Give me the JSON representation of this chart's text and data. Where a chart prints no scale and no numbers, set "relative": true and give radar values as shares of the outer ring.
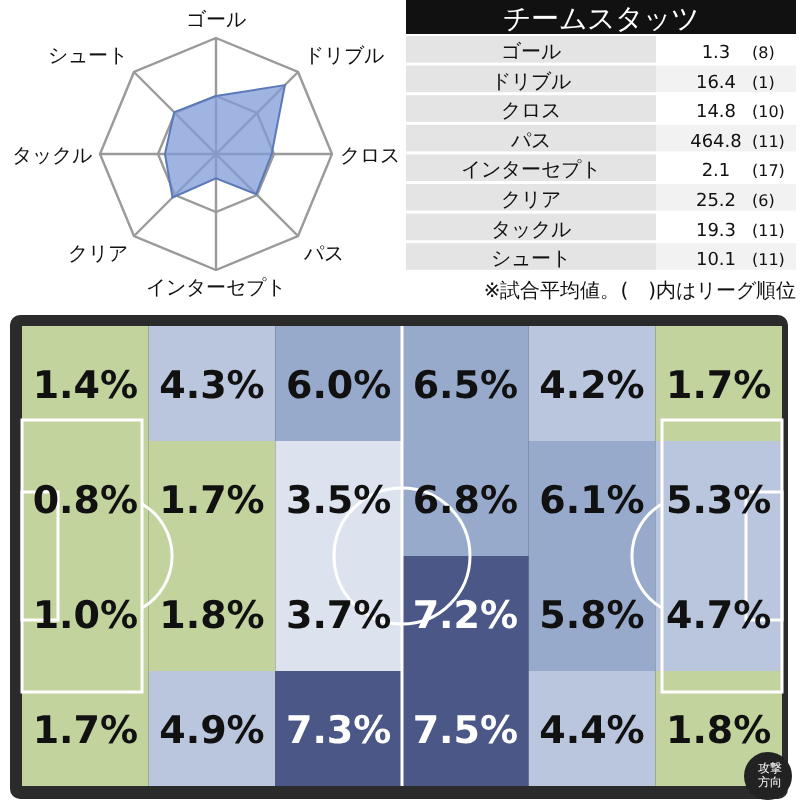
{
  "chart_data": [
    {
      "type": "radar",
      "relative": true,
      "categories": [
        "ゴール",
        "ドリブル",
        "クロス",
        "パス",
        "インターセプト",
        "クリア",
        "タックル",
        "シュート"
      ],
      "series": [
        {
          "color": "#7f9bd6",
          "values": [
            0.5,
            0.84,
            0.48,
            0.49,
            0.21,
            0.53,
            0.44,
            0.51
          ]
        }
      ]
    },
    {
      "type": "other",
      "title": "チームスタッツ",
      "categories": [
        "ゴール",
        "ドリブル",
        "クロス",
        "パス",
        "インターセプト",
        "クリア",
        "タックル",
        "シュート"
      ],
      "series": [
        {
          "values": [
            1.3,
            16.4,
            14.8,
            464.8,
            2.1,
            25.2,
            19.3,
            10.1
          ]
        },
        {
          "values": [
            8,
            1,
            10,
            11,
            17,
            6,
            11,
            11
          ],
          "value_labels": [
            "(8)",
            "(1)",
            "(10)",
            "(11)",
            "(17)",
            "(6)",
            "(11)",
            "(11)"
          ]
        }
      ],
      "data_labels": true,
      "annotations": [
        "※試合平均値。(　)内はリーグ順位"
      ]
    },
    {
      "type": "heatmap",
      "categories": [
        null,
        null,
        null,
        null,
        null,
        null
      ],
      "y_categories": [
        null,
        null,
        null,
        null
      ],
      "cells": [
        [
          1.4,
          4.3,
          6.0,
          6.5,
          4.2,
          1.7
        ],
        [
          0.8,
          1.7,
          3.5,
          6.8,
          6.1,
          5.3
        ],
        [
          1.0,
          1.8,
          3.7,
          7.2,
          5.8,
          4.7
        ],
        [
          1.7,
          4.9,
          7.3,
          7.5,
          4.4,
          1.8
        ]
      ],
      "cell_labels": [
        [
          "1.4%",
          "4.3%",
          "6.0%",
          "6.5%",
          "4.2%",
          "1.7%"
        ],
        [
          "0.8%",
          "1.7%",
          "3.5%",
          "6.8%",
          "6.1%",
          "5.3%"
        ],
        [
          "1.0%",
          "1.8%",
          "3.7%",
          "7.2%",
          "5.8%",
          "4.7%"
        ],
        [
          "1.7%",
          "4.9%",
          "7.3%",
          "7.5%",
          "4.4%",
          "1.8%"
        ]
      ],
      "annotations": [
        "攻撃方向"
      ]
    }
  ]
}
